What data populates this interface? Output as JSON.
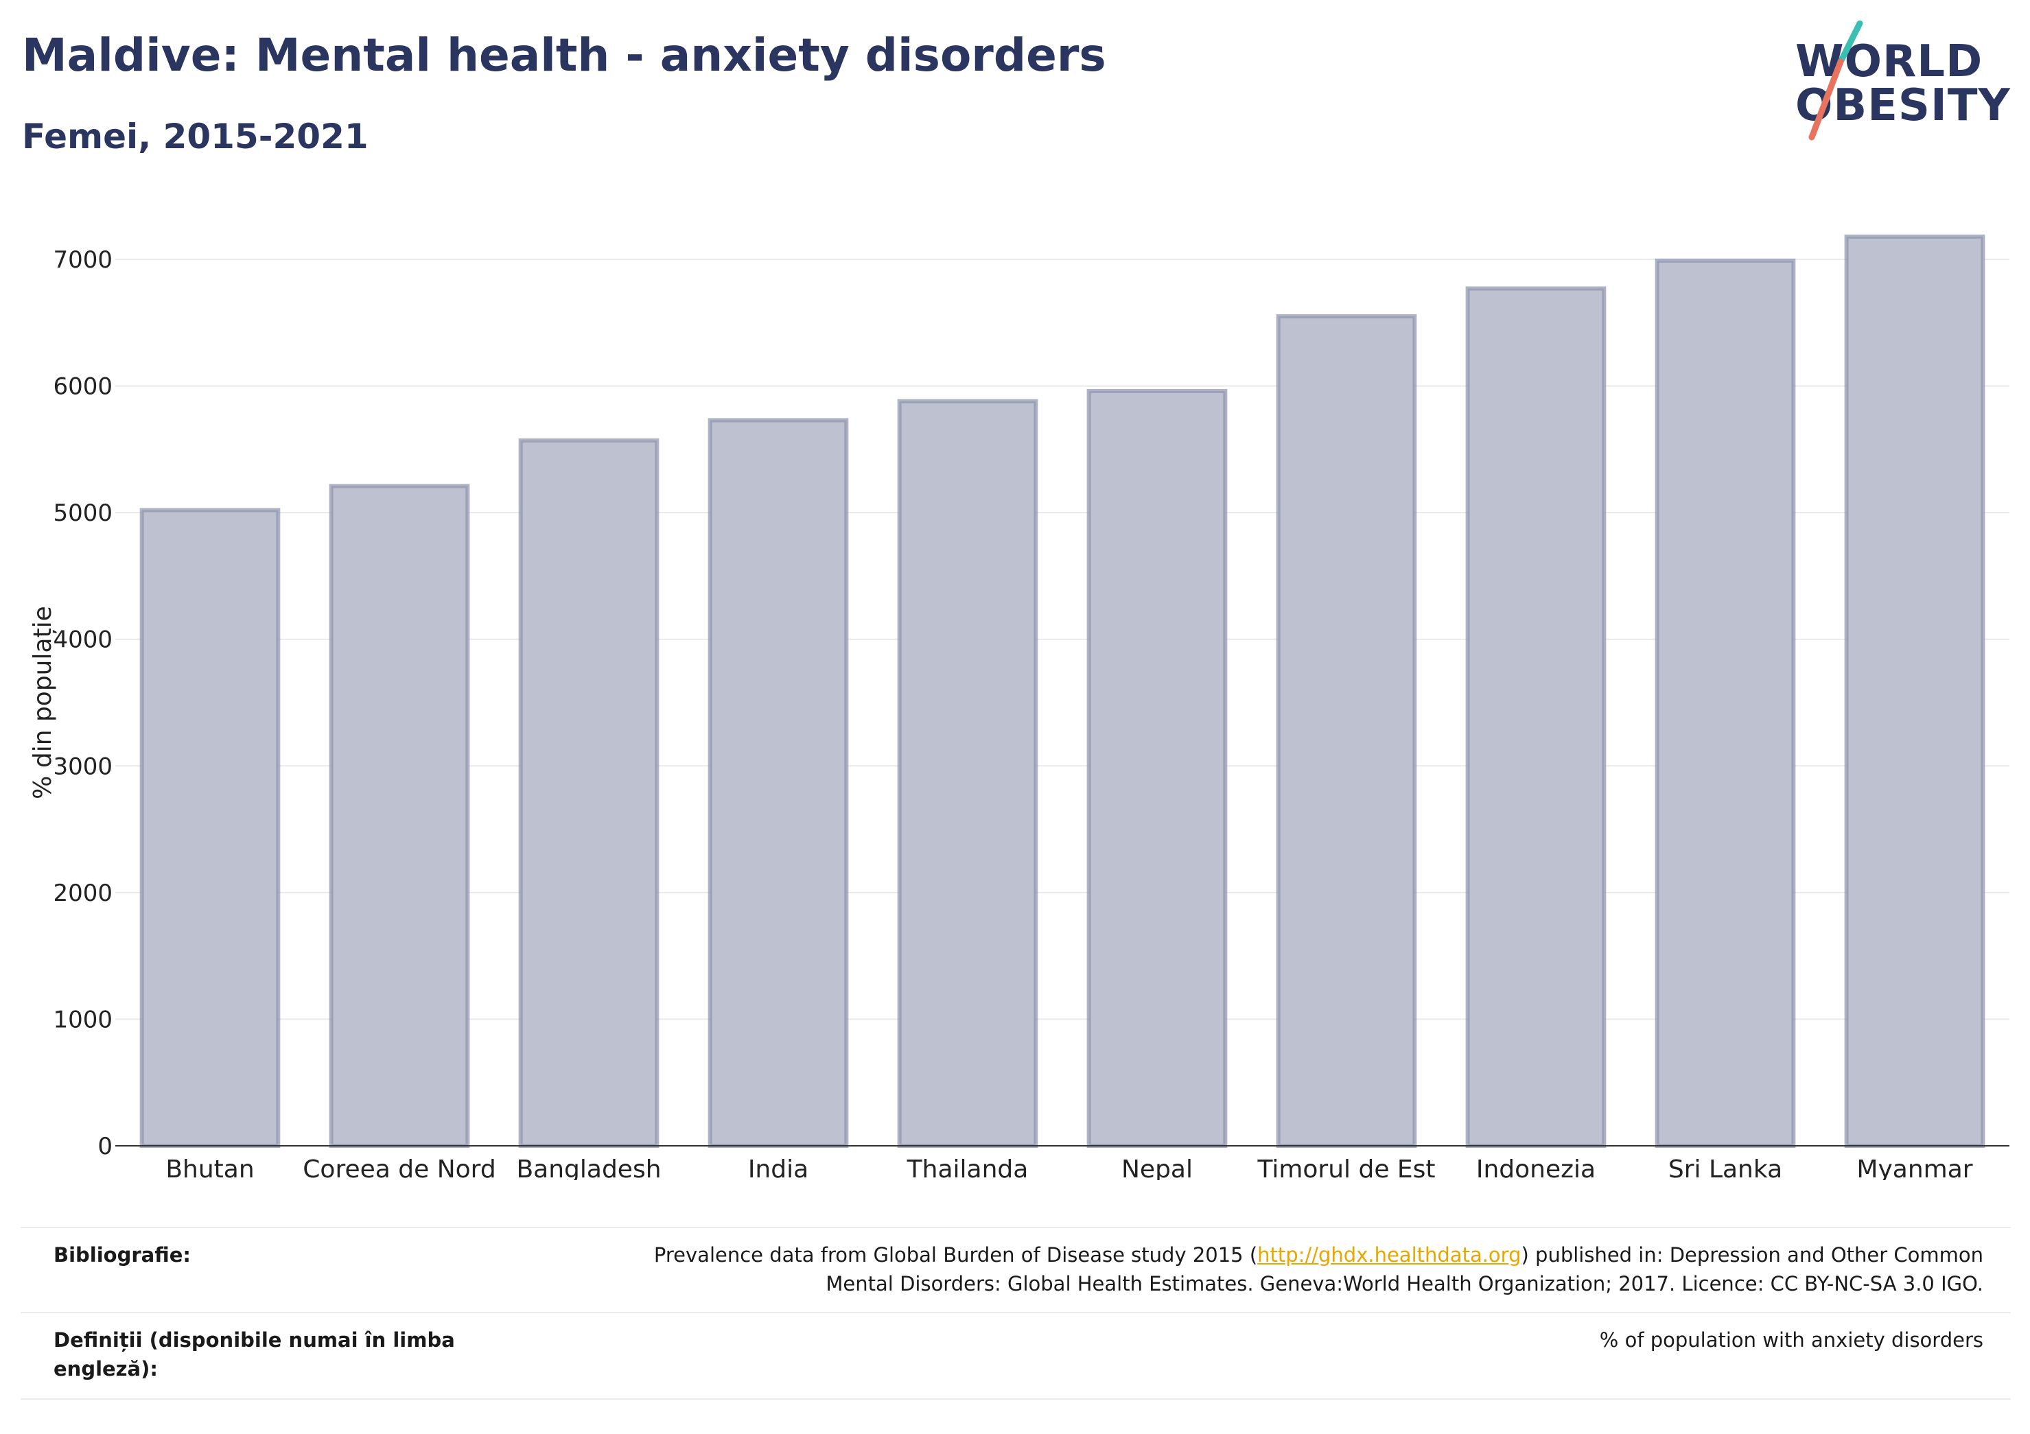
{
  "header": {
    "title": "Maldive: Mental health - anxiety disorders",
    "subtitle": "Femei, 2015-2021"
  },
  "logo": {
    "line1": "WORLD",
    "line2": "OBESITY",
    "colors": {
      "text": "#2a3560",
      "slash_top": "#3bbfb5",
      "slash_bottom": "#e8735f"
    }
  },
  "chart_data": {
    "type": "bar",
    "categories": [
      "Bhutan",
      "Coreea de Nord",
      "Bangladesh",
      "India",
      "Thailanda",
      "Nepal",
      "Timorul de Est",
      "Indonezia",
      "Sri Lanka",
      "Myanmar"
    ],
    "values": [
      5020,
      5210,
      5570,
      5730,
      5880,
      5960,
      6550,
      6770,
      6990,
      7180
    ],
    "ylabel": "% din populație",
    "xlabel": "",
    "yticks": [
      0,
      1000,
      2000,
      3000,
      4000,
      5000,
      6000,
      7000
    ],
    "ylim": [
      0,
      7200
    ],
    "grid": true,
    "colors": {
      "bar_fill": "#bec1cf",
      "bar_stroke": "#8d93ae",
      "grid": "#e9e9ee",
      "axis": "#333333"
    }
  },
  "footer": {
    "bibliography_label": "Bibliografie:",
    "bibliography_pre": "Prevalence data from Global Burden of Disease study 2015 (",
    "bibliography_link": "http://ghdx.healthdata.org",
    "bibliography_post": ") published in: Depression and Other Common",
    "bibliography_line2": "Mental Disorders: Global Health Estimates. Geneva:World Health Organization; 2017. Licence: CC BY-NC-SA 3.0 IGO.",
    "definitions_label": "Definiții (disponibile numai în limba engleză):",
    "definitions_text": "% of population with anxiety disorders",
    "link_color": "#e8a600"
  }
}
